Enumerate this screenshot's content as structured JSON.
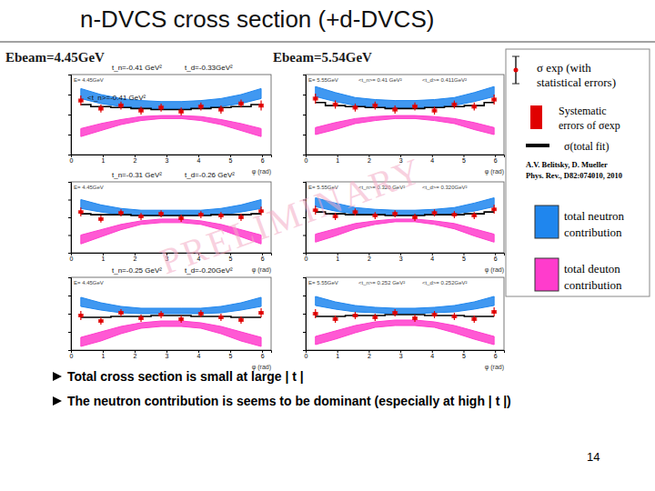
{
  "slide": {
    "title": "n-DVCS cross section (+d-DVCS)",
    "beam_labels": [
      "Ebeam=4.45GeV",
      "Ebeam=5.54GeV"
    ],
    "watermark": "PRELIMINARY",
    "legend": {
      "exp": [
        "σ exp (with",
        "statistical errors)"
      ],
      "systematic": [
        "Systematic",
        "errors of σexp"
      ],
      "fit": [
        "σ(total fit)"
      ],
      "reference": [
        "A.V. Belitsky, D. Mueller",
        "Phys. Rev., D82:074010, 2010"
      ],
      "neutron": [
        "total neutron",
        "contribution"
      ],
      "deuton": [
        "total deuton",
        "contribution"
      ]
    },
    "bullets": [
      "Total cross section is small at large | t |",
      "The neutron contribution is seems to be dominant (especially at high | t |)"
    ],
    "page_number": "14"
  },
  "chart_data": [
    {
      "type": "errorbar",
      "header": [
        "E= 4.45GeV"
      ],
      "annotations": [
        "t_n=-0.41 GeV²",
        "t_d=-0.33GeV²",
        "<t_n>=-0.41 GeV²"
      ],
      "x": [
        0.31,
        0.94,
        1.57,
        2.2,
        2.83,
        3.46,
        4.08,
        4.71,
        5.34,
        5.97
      ],
      "xlim": [
        0,
        6.2832
      ],
      "xticks": [
        0,
        1,
        2,
        3,
        4,
        5,
        6
      ],
      "xlabel": "φ (rad)",
      "ylim": [
        -0.04,
        0.04
      ],
      "yticks": [
        -0.04,
        -0.02,
        0,
        0.02,
        0.04
      ],
      "tick_labels": "x",
      "series": [
        {
          "type": "band",
          "color": "#1f86ee",
          "lower": [
            0.016,
            0.011,
            0.008,
            0.006,
            0.006,
            0.006,
            0.006,
            0.008,
            0.011,
            0.016
          ],
          "upper": [
            0.026,
            0.02,
            0.016,
            0.014,
            0.013,
            0.013,
            0.014,
            0.016,
            0.02,
            0.026
          ]
        },
        {
          "type": "band",
          "color": "#ff3ccc",
          "lower": [
            -0.022,
            -0.016,
            -0.01,
            -0.006,
            -0.004,
            -0.004,
            -0.006,
            -0.01,
            -0.016,
            -0.022
          ],
          "upper": [
            -0.014,
            -0.009,
            -0.005,
            -0.002,
            -0.001,
            -0.001,
            -0.002,
            -0.005,
            -0.009,
            -0.014
          ]
        },
        {
          "type": "step",
          "color": "#000000",
          "values": [
            0.01,
            0.008,
            0.007,
            0.006,
            0.005,
            0.005,
            0.006,
            0.007,
            0.008,
            0.01
          ]
        },
        {
          "type": "errorbar",
          "color": "#e00000",
          "values": [
            0.014,
            0.006,
            0.009,
            0.004,
            0.007,
            0.003,
            0.008,
            0.005,
            0.011,
            0.009
          ],
          "errors": [
            0.005,
            0.004,
            0.004,
            0.004,
            0.004,
            0.004,
            0.004,
            0.004,
            0.004,
            0.005
          ],
          "systematic": [
            0.002,
            0.002,
            0.002,
            0.002,
            0.002,
            0.002,
            0.002,
            0.002,
            0.002,
            0.002
          ]
        }
      ]
    },
    {
      "type": "errorbar",
      "header": [
        "E= 5.55GeV",
        "<t_n>= 0.41 GeV²",
        "<t_d>= 0.411GeV²"
      ],
      "annotations": [],
      "x": [
        0.31,
        0.94,
        1.57,
        2.2,
        2.83,
        3.46,
        4.08,
        4.71,
        5.34,
        5.97
      ],
      "xlim": [
        0,
        6.2832
      ],
      "xticks": [
        0,
        1,
        2,
        3,
        4,
        5,
        6
      ],
      "xlabel": "φ (rad)",
      "ylim": [
        -0.04,
        0.04
      ],
      "yticks": [
        -0.04,
        -0.02,
        0,
        0.02,
        0.04
      ],
      "tick_labels": "x",
      "series": [
        {
          "type": "band",
          "color": "#1f86ee",
          "lower": [
            0.018,
            0.013,
            0.009,
            0.007,
            0.007,
            0.007,
            0.007,
            0.009,
            0.013,
            0.018
          ],
          "upper": [
            0.028,
            0.022,
            0.017,
            0.015,
            0.014,
            0.014,
            0.015,
            0.017,
            0.022,
            0.028
          ]
        },
        {
          "type": "band",
          "color": "#ff3ccc",
          "lower": [
            -0.02,
            -0.015,
            -0.009,
            -0.006,
            -0.004,
            -0.004,
            -0.006,
            -0.009,
            -0.015,
            -0.02
          ],
          "upper": [
            -0.013,
            -0.008,
            -0.004,
            -0.002,
            -0.001,
            -0.001,
            -0.002,
            -0.004,
            -0.008,
            -0.013
          ]
        },
        {
          "type": "step",
          "color": "#000000",
          "values": [
            0.012,
            0.009,
            0.008,
            0.007,
            0.006,
            0.006,
            0.007,
            0.008,
            0.009,
            0.012
          ]
        },
        {
          "type": "errorbar",
          "color": "#e00000",
          "values": [
            0.016,
            0.01,
            0.007,
            0.009,
            0.005,
            0.008,
            0.004,
            0.01,
            0.008,
            0.015
          ],
          "errors": [
            0.005,
            0.004,
            0.004,
            0.004,
            0.004,
            0.004,
            0.004,
            0.004,
            0.004,
            0.005
          ],
          "systematic": [
            0.002,
            0.002,
            0.002,
            0.002,
            0.002,
            0.002,
            0.002,
            0.002,
            0.002,
            0.002
          ]
        }
      ]
    },
    {
      "type": "errorbar",
      "header": [
        "E= 4.45GeV"
      ],
      "annotations": [
        "t_n=-0.31 GeV²",
        "t_d=-0.26 GeV²"
      ],
      "x": [
        0.31,
        0.94,
        1.57,
        2.2,
        2.83,
        3.46,
        4.08,
        4.71,
        5.34,
        5.97
      ],
      "xlim": [
        0,
        6.2832
      ],
      "xticks": [
        0,
        1,
        2,
        3,
        4,
        5,
        6
      ],
      "xlabel": "φ (rad)",
      "ylim": [
        -0.04,
        0.04
      ],
      "yticks": [
        -0.04,
        -0.02,
        0,
        0.02,
        0.04
      ],
      "tick_labels": "x",
      "series": [
        {
          "type": "band",
          "color": "#1f86ee",
          "lower": [
            0.01,
            0.006,
            0.003,
            0.002,
            0.002,
            0.002,
            0.002,
            0.003,
            0.006,
            0.01
          ],
          "upper": [
            0.02,
            0.014,
            0.01,
            0.008,
            0.008,
            0.008,
            0.008,
            0.01,
            0.014,
            0.02
          ]
        },
        {
          "type": "band",
          "color": "#ff3ccc",
          "lower": [
            -0.03,
            -0.022,
            -0.014,
            -0.008,
            -0.006,
            -0.006,
            -0.008,
            -0.014,
            -0.022,
            -0.03
          ],
          "upper": [
            -0.02,
            -0.014,
            -0.008,
            -0.004,
            -0.002,
            -0.002,
            -0.004,
            -0.008,
            -0.014,
            -0.02
          ]
        },
        {
          "type": "step",
          "color": "#000000",
          "values": [
            0.004,
            0.003,
            0.003,
            0.002,
            0.002,
            0.002,
            0.002,
            0.003,
            0.003,
            0.004
          ]
        },
        {
          "type": "errorbar",
          "color": "#e00000",
          "values": [
            0.006,
            -0.002,
            0.005,
            0.001,
            0.004,
            -0.001,
            0.003,
            0.002,
            0.0,
            0.007
          ],
          "errors": [
            0.005,
            0.004,
            0.004,
            0.004,
            0.004,
            0.004,
            0.004,
            0.004,
            0.004,
            0.005
          ],
          "systematic": [
            0.002,
            0.002,
            0.002,
            0.002,
            0.002,
            0.002,
            0.002,
            0.002,
            0.002,
            0.002
          ]
        }
      ]
    },
    {
      "type": "errorbar",
      "header": [
        "E= 5.55GeV",
        "<t_n>= 0.320 GeV²",
        "<t_d>= 0.320GeV²"
      ],
      "annotations": [],
      "x": [
        0.31,
        0.94,
        1.57,
        2.2,
        2.83,
        3.46,
        4.08,
        4.71,
        5.34,
        5.97
      ],
      "xlim": [
        0,
        6.2832
      ],
      "xticks": [
        0,
        1,
        2,
        3,
        4,
        5,
        6
      ],
      "xlabel": "φ (rad)",
      "ylim": [
        -0.04,
        0.04
      ],
      "yticks": [
        -0.04,
        -0.02,
        0,
        0.02,
        0.04
      ],
      "tick_labels": "x",
      "series": [
        {
          "type": "band",
          "color": "#1f86ee",
          "lower": [
            0.012,
            0.007,
            0.004,
            0.003,
            0.002,
            0.002,
            0.003,
            0.004,
            0.007,
            0.012
          ],
          "upper": [
            0.022,
            0.016,
            0.011,
            0.009,
            0.008,
            0.008,
            0.009,
            0.011,
            0.016,
            0.022
          ]
        },
        {
          "type": "band",
          "color": "#ff3ccc",
          "lower": [
            -0.028,
            -0.021,
            -0.013,
            -0.008,
            -0.005,
            -0.005,
            -0.008,
            -0.013,
            -0.021,
            -0.028
          ],
          "upper": [
            -0.019,
            -0.013,
            -0.007,
            -0.004,
            -0.002,
            -0.002,
            -0.004,
            -0.007,
            -0.013,
            -0.019
          ]
        },
        {
          "type": "step",
          "color": "#000000",
          "values": [
            0.006,
            0.004,
            0.003,
            0.003,
            0.002,
            0.002,
            0.003,
            0.003,
            0.004,
            0.006
          ]
        },
        {
          "type": "errorbar",
          "color": "#e00000",
          "values": [
            0.008,
            0.001,
            0.006,
            0.002,
            0.004,
            0.0,
            0.005,
            0.003,
            0.002,
            0.009
          ],
          "errors": [
            0.005,
            0.004,
            0.004,
            0.004,
            0.004,
            0.004,
            0.004,
            0.004,
            0.004,
            0.005
          ],
          "systematic": [
            0.002,
            0.002,
            0.002,
            0.002,
            0.002,
            0.002,
            0.002,
            0.002,
            0.002,
            0.002
          ]
        }
      ]
    },
    {
      "type": "errorbar",
      "header": [
        "E= 4.45GeV"
      ],
      "annotations": [
        "t_n=-0.25 GeV²",
        "t_d=-0.20GeV²"
      ],
      "x": [
        0.31,
        0.94,
        1.57,
        2.2,
        2.83,
        3.46,
        4.08,
        4.71,
        5.34,
        5.97
      ],
      "xlim": [
        0,
        6.2832
      ],
      "xticks": [
        0,
        1,
        2,
        3,
        4,
        5,
        6
      ],
      "xlabel": "φ (rad)",
      "ylim": [
        -0.04,
        0.04
      ],
      "yticks": [
        -0.04,
        -0.02,
        0,
        0.02,
        0.04
      ],
      "tick_labels": "x",
      "series": [
        {
          "type": "band",
          "color": "#1f86ee",
          "lower": [
            0.008,
            0.004,
            0.001,
            0.0,
            0.0,
            0.0,
            0.0,
            0.001,
            0.004,
            0.008
          ],
          "upper": [
            0.018,
            0.012,
            0.008,
            0.006,
            0.006,
            0.006,
            0.006,
            0.008,
            0.012,
            0.018
          ]
        },
        {
          "type": "band",
          "color": "#ff3ccc",
          "lower": [
            -0.036,
            -0.03,
            -0.022,
            -0.016,
            -0.014,
            -0.014,
            -0.016,
            -0.022,
            -0.03,
            -0.036
          ],
          "upper": [
            -0.026,
            -0.02,
            -0.014,
            -0.01,
            -0.008,
            -0.008,
            -0.01,
            -0.014,
            -0.02,
            -0.026
          ]
        },
        {
          "type": "step",
          "color": "#000000",
          "values": [
            -0.004,
            -0.004,
            -0.003,
            -0.003,
            -0.002,
            -0.002,
            -0.003,
            -0.003,
            -0.004,
            -0.004
          ]
        },
        {
          "type": "errorbar",
          "color": "#e00000",
          "values": [
            -0.002,
            -0.008,
            0.001,
            -0.005,
            -0.001,
            -0.006,
            0.0,
            -0.004,
            -0.007,
            0.001
          ],
          "errors": [
            0.005,
            0.004,
            0.004,
            0.004,
            0.004,
            0.004,
            0.004,
            0.004,
            0.004,
            0.005
          ],
          "systematic": [
            0.002,
            0.002,
            0.002,
            0.002,
            0.002,
            0.002,
            0.002,
            0.002,
            0.002,
            0.002
          ]
        }
      ]
    },
    {
      "type": "errorbar",
      "header": [
        "E= 5.55GeV",
        "<t_n>= 0.252 GeV²",
        "<t_d>= 0.252GeV²"
      ],
      "annotations": [],
      "x": [
        0.31,
        0.94,
        1.57,
        2.2,
        2.83,
        3.46,
        4.08,
        4.71,
        5.34,
        5.97
      ],
      "xlim": [
        0,
        6.2832
      ],
      "xticks": [
        0,
        1,
        2,
        3,
        4,
        5,
        6
      ],
      "xlabel": "φ (rad)",
      "ylim": [
        -0.04,
        0.04
      ],
      "yticks": [
        -0.04,
        -0.02,
        0,
        0.02,
        0.04
      ],
      "tick_labels": "x",
      "series": [
        {
          "type": "band",
          "color": "#1f86ee",
          "lower": [
            0.009,
            0.005,
            0.002,
            0.001,
            0.0,
            0.0,
            0.001,
            0.002,
            0.005,
            0.009
          ],
          "upper": [
            0.019,
            0.013,
            0.009,
            0.007,
            0.006,
            0.006,
            0.007,
            0.009,
            0.013,
            0.019
          ]
        },
        {
          "type": "band",
          "color": "#ff3ccc",
          "lower": [
            -0.034,
            -0.028,
            -0.021,
            -0.015,
            -0.013,
            -0.013,
            -0.015,
            -0.021,
            -0.028,
            -0.034
          ],
          "upper": [
            -0.025,
            -0.019,
            -0.013,
            -0.009,
            -0.007,
            -0.007,
            -0.009,
            -0.013,
            -0.019,
            -0.025
          ]
        },
        {
          "type": "step",
          "color": "#000000",
          "values": [
            -0.003,
            -0.003,
            -0.002,
            -0.002,
            -0.001,
            -0.001,
            -0.002,
            -0.002,
            -0.003,
            -0.003
          ]
        },
        {
          "type": "errorbar",
          "color": "#e00000",
          "values": [
            0.0,
            -0.006,
            -0.002,
            -0.004,
            0.001,
            -0.005,
            -0.001,
            -0.003,
            -0.006,
            0.002
          ],
          "errors": [
            0.005,
            0.004,
            0.004,
            0.004,
            0.004,
            0.004,
            0.004,
            0.004,
            0.004,
            0.005
          ],
          "systematic": [
            0.002,
            0.002,
            0.002,
            0.002,
            0.002,
            0.002,
            0.002,
            0.002,
            0.002,
            0.002
          ]
        }
      ]
    }
  ]
}
